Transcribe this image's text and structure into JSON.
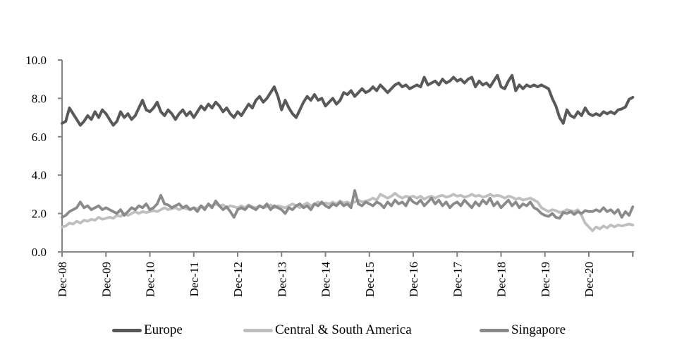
{
  "chart_data": {
    "type": "line",
    "title": "",
    "xlabel": "",
    "ylabel": "",
    "x_unit": "monthly from Dec-08 to Dec-21",
    "x_tick_labels": [
      "Dec-08",
      "Dec-09",
      "Dec-10",
      "Dec-11",
      "Dec-12",
      "Dec-13",
      "Dec-14",
      "Dec-15",
      "Dec-16",
      "Dec-17",
      "Dec-18",
      "Dec-19",
      "Dec-20"
    ],
    "y_tick_labels": [
      "0.0",
      "2.0",
      "4.0",
      "6.0",
      "8.0",
      "10.0"
    ],
    "y_ticks": [
      0,
      2,
      4,
      6,
      8,
      10
    ],
    "ylim": [
      0,
      10
    ],
    "grid": false,
    "legend_position": "bottom",
    "axis_color": "#848484",
    "text_color": "#000000",
    "series": [
      {
        "name": "Europe",
        "color": "#595959",
        "values": [
          6.7,
          6.8,
          7.5,
          7.2,
          6.9,
          6.6,
          6.8,
          7.1,
          6.9,
          7.3,
          7.0,
          7.4,
          7.2,
          6.9,
          6.6,
          6.8,
          7.3,
          7.0,
          7.2,
          6.9,
          7.1,
          7.5,
          7.9,
          7.4,
          7.3,
          7.5,
          7.8,
          7.3,
          7.1,
          7.4,
          7.2,
          6.9,
          7.2,
          7.4,
          7.1,
          7.3,
          7.0,
          7.3,
          7.6,
          7.4,
          7.7,
          7.5,
          7.8,
          7.6,
          7.3,
          7.5,
          7.2,
          7.0,
          7.3,
          7.1,
          7.4,
          7.7,
          7.5,
          7.9,
          8.1,
          7.8,
          8.0,
          8.3,
          8.6,
          8.1,
          7.4,
          7.9,
          7.5,
          7.2,
          7.0,
          7.4,
          7.8,
          8.1,
          7.9,
          8.2,
          7.9,
          8.0,
          7.6,
          7.8,
          8.0,
          7.7,
          7.9,
          8.3,
          8.2,
          8.4,
          8.1,
          8.3,
          8.5,
          8.3,
          8.4,
          8.6,
          8.4,
          8.7,
          8.5,
          8.3,
          8.5,
          8.7,
          8.8,
          8.6,
          8.7,
          8.5,
          8.6,
          8.7,
          8.6,
          9.1,
          8.7,
          8.8,
          8.9,
          8.7,
          9.0,
          8.8,
          8.9,
          9.1,
          8.9,
          9.0,
          8.8,
          9.0,
          9.1,
          8.6,
          8.9,
          8.7,
          8.8,
          8.6,
          8.9,
          9.2,
          8.6,
          8.5,
          8.9,
          9.2,
          8.4,
          8.7,
          8.5,
          8.7,
          8.6,
          8.7,
          8.6,
          8.7,
          8.6,
          8.5,
          8.0,
          7.6,
          7.0,
          6.7,
          7.4,
          7.1,
          7.0,
          7.3,
          7.1,
          7.5,
          7.2,
          7.1,
          7.2,
          7.1,
          7.3,
          7.2,
          7.3,
          7.2,
          7.4,
          7.45,
          7.55,
          7.95,
          8.05
        ]
      },
      {
        "name": "Central & South America",
        "color": "#BFBFBF",
        "values": [
          1.3,
          1.35,
          1.5,
          1.45,
          1.6,
          1.5,
          1.65,
          1.6,
          1.7,
          1.65,
          1.8,
          1.7,
          1.75,
          1.8,
          1.75,
          1.9,
          1.85,
          2.0,
          1.9,
          2.0,
          2.1,
          2.0,
          2.1,
          2.05,
          2.1,
          2.15,
          2.1,
          2.2,
          2.3,
          2.2,
          2.25,
          2.3,
          2.2,
          2.3,
          2.25,
          2.2,
          2.3,
          2.25,
          2.4,
          2.3,
          2.45,
          2.4,
          2.5,
          2.4,
          2.45,
          2.3,
          2.4,
          2.35,
          2.3,
          2.4,
          2.3,
          2.45,
          2.35,
          2.3,
          2.4,
          2.3,
          2.35,
          2.45,
          2.3,
          2.4,
          2.35,
          2.3,
          2.4,
          2.5,
          2.4,
          2.3,
          2.45,
          2.55,
          2.4,
          2.5,
          2.6,
          2.5,
          2.55,
          2.5,
          2.6,
          2.5,
          2.65,
          2.55,
          2.6,
          2.5,
          2.6,
          2.7,
          2.6,
          2.65,
          2.7,
          2.8,
          2.7,
          3.0,
          2.9,
          2.8,
          2.9,
          3.05,
          2.9,
          2.8,
          2.9,
          2.85,
          2.9,
          2.8,
          2.9,
          2.75,
          2.85,
          2.9,
          2.8,
          2.9,
          2.95,
          2.85,
          2.9,
          3.0,
          2.9,
          2.95,
          2.85,
          2.9,
          3.0,
          2.9,
          2.95,
          2.85,
          2.9,
          3.0,
          2.9,
          2.95,
          2.9,
          2.8,
          2.9,
          2.85,
          2.75,
          2.8,
          2.7,
          2.75,
          2.8,
          2.7,
          2.6,
          2.3,
          2.2,
          2.1,
          2.2,
          2.15,
          2.05,
          2.1,
          2.2,
          2.15,
          2.1,
          2.2,
          1.9,
          1.5,
          1.3,
          1.1,
          1.3,
          1.2,
          1.35,
          1.25,
          1.4,
          1.3,
          1.4,
          1.35,
          1.4,
          1.45,
          1.4
        ]
      },
      {
        "name": "Singapore",
        "color": "#8A8A8A",
        "values": [
          1.8,
          1.9,
          2.1,
          2.2,
          2.3,
          2.6,
          2.3,
          2.4,
          2.2,
          2.3,
          2.4,
          2.2,
          2.3,
          2.2,
          2.1,
          2.0,
          2.2,
          1.9,
          2.1,
          2.3,
          2.2,
          2.4,
          2.3,
          2.5,
          2.2,
          2.3,
          2.5,
          2.95,
          2.5,
          2.45,
          2.3,
          2.4,
          2.5,
          2.3,
          2.4,
          2.2,
          2.3,
          2.1,
          2.4,
          2.2,
          2.5,
          2.3,
          2.65,
          2.4,
          2.2,
          2.35,
          2.1,
          1.8,
          2.2,
          2.3,
          2.2,
          2.4,
          2.3,
          2.2,
          2.4,
          2.3,
          2.5,
          2.2,
          2.4,
          2.3,
          2.2,
          2.0,
          2.3,
          2.2,
          2.4,
          2.5,
          2.3,
          2.4,
          2.2,
          2.5,
          2.4,
          2.6,
          2.4,
          2.3,
          2.5,
          2.4,
          2.6,
          2.4,
          2.5,
          2.3,
          3.2,
          2.5,
          2.4,
          2.6,
          2.5,
          2.4,
          2.6,
          2.5,
          2.3,
          2.6,
          2.4,
          2.7,
          2.5,
          2.6,
          2.4,
          2.8,
          2.6,
          2.5,
          2.7,
          2.4,
          2.6,
          2.8,
          2.5,
          2.7,
          2.4,
          2.6,
          2.3,
          2.5,
          2.6,
          2.4,
          2.7,
          2.5,
          2.3,
          2.6,
          2.4,
          2.7,
          2.5,
          2.8,
          2.4,
          2.6,
          2.3,
          2.5,
          2.7,
          2.4,
          2.6,
          2.3,
          2.5,
          2.4,
          2.6,
          2.3,
          2.2,
          2.0,
          1.9,
          1.85,
          2.0,
          1.8,
          1.75,
          2.05,
          2.0,
          2.1,
          1.95,
          2.1,
          2.0,
          2.15,
          2.1,
          2.1,
          2.2,
          2.1,
          2.3,
          2.1,
          2.2,
          2.0,
          2.2,
          1.8,
          2.1,
          1.9,
          2.35
        ]
      }
    ]
  },
  "legend": {
    "items": [
      {
        "label": "Europe",
        "color": "#595959"
      },
      {
        "label": "Central & South America",
        "color": "#BFBFBF"
      },
      {
        "label": "Singapore",
        "color": "#8A8A8A"
      }
    ]
  }
}
